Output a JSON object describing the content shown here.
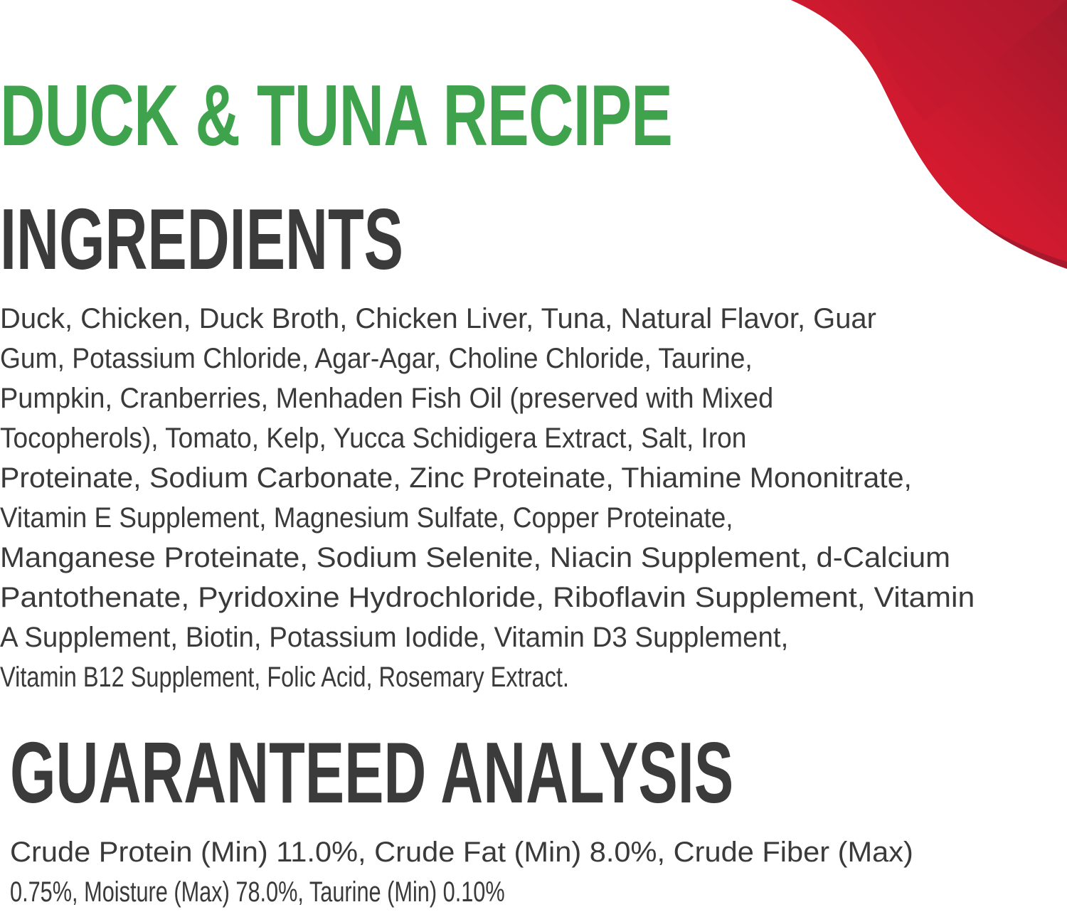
{
  "recipe_title": "DUCK & TUNA RECIPE",
  "colors": {
    "title_green": "#3fa34d",
    "heading_dark": "#3b3b3b",
    "swoosh_red": "#e8192c",
    "swoosh_dark_red": "#a8192e"
  },
  "ingredients": {
    "heading": "INGREDIENTS",
    "lines": [
      "Duck, Chicken, Duck Broth, Chicken Liver, Tuna, Natural Flavor, Guar",
      "Gum, Potassium Chloride, Agar-Agar, Choline Chloride, Taurine,",
      "Pumpkin, Cranberries, Menhaden Fish Oil (preserved with Mixed",
      "Tocopherols), Tomato, Kelp, Yucca Schidigera Extract, Salt, Iron",
      "Proteinate, Sodium Carbonate, Zinc Proteinate, Thiamine Mononitrate,",
      "Vitamin E Supplement, Magnesium Sulfate, Copper Proteinate,",
      "Manganese Proteinate, Sodium Selenite, Niacin Supplement, d-Calcium",
      "Pantothenate, Pyridoxine Hydrochloride, Riboflavin Supplement, Vitamin",
      "A Supplement, Biotin, Potassium Iodide, Vitamin D3 Supplement,",
      "Vitamin B12 Supplement, Folic Acid, Rosemary Extract."
    ]
  },
  "guaranteed_analysis": {
    "heading": "GUARANTEED ANALYSIS",
    "lines": [
      "Crude Protein (Min) 11.0%, Crude Fat (Min) 8.0%, Crude Fiber (Max)",
      "0.75%, Moisture (Max) 78.0%, Taurine (Min) 0.10%"
    ]
  }
}
